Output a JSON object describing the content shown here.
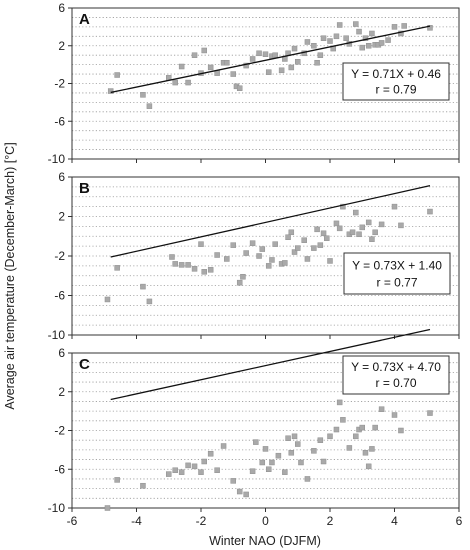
{
  "figure": {
    "ylabel": "Average air temperature (December-March) [°C]",
    "xlabel": "Winter NAO (DJFM)"
  },
  "chart_data": [
    {
      "type": "scatter",
      "panel": "A",
      "xlim": [
        -6,
        6
      ],
      "ylim": [
        -10,
        6
      ],
      "xticks": [
        -6,
        -4,
        -2,
        0,
        2,
        4,
        6
      ],
      "yticks": [
        -10,
        -6,
        -2,
        2,
        6
      ],
      "grid": "dotted horizontal at 1-unit intervals",
      "equation": "Y = 0.71X + 0.46",
      "r": "r = 0.79",
      "annotation_placement": "right-middle",
      "trendline": {
        "slope": 0.71,
        "intercept": 0.46,
        "x_range": [
          -4.8,
          5.1
        ]
      },
      "points": [
        [
          -4.8,
          -2.8
        ],
        [
          -4.6,
          -1.1
        ],
        [
          -3.8,
          -3.2
        ],
        [
          -3.6,
          -4.4
        ],
        [
          -3.0,
          -1.4
        ],
        [
          -2.8,
          -1.9
        ],
        [
          -2.6,
          -0.2
        ],
        [
          -2.4,
          -1.9
        ],
        [
          -2.2,
          1.0
        ],
        [
          -2.0,
          -0.9
        ],
        [
          -1.9,
          1.5
        ],
        [
          -1.7,
          -0.3
        ],
        [
          -1.5,
          -0.9
        ],
        [
          -1.3,
          0.2
        ],
        [
          -1.2,
          0.2
        ],
        [
          -1.0,
          -1.0
        ],
        [
          -0.9,
          -2.3
        ],
        [
          -0.8,
          -2.5
        ],
        [
          -0.6,
          -0.1
        ],
        [
          -0.4,
          0.6
        ],
        [
          -0.2,
          1.2
        ],
        [
          0.0,
          1.1
        ],
        [
          0.1,
          -0.8
        ],
        [
          0.2,
          0.9
        ],
        [
          0.3,
          1.0
        ],
        [
          0.5,
          -0.6
        ],
        [
          0.6,
          0.6
        ],
        [
          0.7,
          1.2
        ],
        [
          0.8,
          -0.3
        ],
        [
          0.9,
          1.7
        ],
        [
          1.0,
          0.3
        ],
        [
          1.2,
          1.2
        ],
        [
          1.3,
          2.4
        ],
        [
          1.5,
          2.0
        ],
        [
          1.6,
          0.2
        ],
        [
          1.7,
          1.0
        ],
        [
          1.8,
          2.8
        ],
        [
          2.0,
          2.5
        ],
        [
          2.1,
          1.7
        ],
        [
          2.2,
          3.0
        ],
        [
          2.3,
          4.2
        ],
        [
          2.5,
          2.8
        ],
        [
          2.6,
          2.2
        ],
        [
          2.8,
          4.3
        ],
        [
          2.9,
          3.5
        ],
        [
          3.0,
          1.8
        ],
        [
          3.1,
          2.8
        ],
        [
          3.2,
          2.0
        ],
        [
          3.3,
          3.3
        ],
        [
          3.4,
          2.1
        ],
        [
          3.5,
          2.1
        ],
        [
          3.6,
          2.3
        ],
        [
          3.8,
          2.6
        ],
        [
          4.0,
          4.0
        ],
        [
          4.2,
          3.3
        ],
        [
          4.3,
          4.1
        ],
        [
          5.1,
          3.9
        ]
      ]
    },
    {
      "type": "scatter",
      "panel": "B",
      "xlim": [
        -6,
        6
      ],
      "ylim": [
        -10,
        6
      ],
      "xticks": [
        -6,
        -4,
        -2,
        0,
        2,
        4,
        6
      ],
      "yticks": [
        -10,
        -6,
        -2,
        2,
        6
      ],
      "grid": "dotted horizontal at 1-unit intervals",
      "equation": "Y = 0.73X + 1.40",
      "r": "r = 0.77",
      "annotation_placement": "right-middle",
      "trendline": {
        "slope": 0.73,
        "intercept": 1.4,
        "x_range": [
          -4.8,
          5.1
        ]
      },
      "points": [
        [
          -4.9,
          -6.4
        ],
        [
          -4.6,
          -3.2
        ],
        [
          -3.8,
          -5.1
        ],
        [
          -3.6,
          -6.6
        ],
        [
          -2.9,
          -2.1
        ],
        [
          -2.8,
          -2.8
        ],
        [
          -2.6,
          -2.9
        ],
        [
          -2.4,
          -2.9
        ],
        [
          -2.2,
          -3.3
        ],
        [
          -2.0,
          -0.8
        ],
        [
          -1.9,
          -3.6
        ],
        [
          -1.7,
          -3.4
        ],
        [
          -1.5,
          -1.9
        ],
        [
          -1.2,
          -2.3
        ],
        [
          -1.0,
          -0.9
        ],
        [
          -0.8,
          -4.7
        ],
        [
          -0.7,
          -4.1
        ],
        [
          -0.6,
          -1.7
        ],
        [
          -0.4,
          -0.7
        ],
        [
          -0.2,
          -2.0
        ],
        [
          -0.1,
          -1.3
        ],
        [
          0.1,
          -3.0
        ],
        [
          0.2,
          -2.4
        ],
        [
          0.3,
          -0.8
        ],
        [
          0.5,
          -2.8
        ],
        [
          0.6,
          -2.7
        ],
        [
          0.7,
          -0.1
        ],
        [
          0.8,
          0.4
        ],
        [
          0.9,
          -1.6
        ],
        [
          1.0,
          -1.2
        ],
        [
          1.2,
          -0.4
        ],
        [
          1.3,
          -2.3
        ],
        [
          1.5,
          -1.2
        ],
        [
          1.6,
          0.7
        ],
        [
          1.7,
          -0.9
        ],
        [
          1.8,
          0.3
        ],
        [
          1.9,
          -0.2
        ],
        [
          2.0,
          -2.5
        ],
        [
          2.2,
          1.3
        ],
        [
          2.3,
          0.8
        ],
        [
          2.4,
          3.0
        ],
        [
          2.6,
          0.2
        ],
        [
          2.7,
          0.4
        ],
        [
          2.8,
          2.4
        ],
        [
          2.9,
          0.2
        ],
        [
          3.0,
          0.9
        ],
        [
          3.2,
          1.4
        ],
        [
          3.3,
          -0.3
        ],
        [
          3.4,
          0.4
        ],
        [
          3.6,
          1.2
        ],
        [
          4.0,
          3.0
        ],
        [
          4.2,
          1.1
        ],
        [
          5.1,
          2.5
        ]
      ]
    },
    {
      "type": "scatter",
      "panel": "C",
      "xlim": [
        -6,
        6
      ],
      "ylim": [
        -10,
        6
      ],
      "xticks": [
        -6,
        -4,
        -2,
        0,
        2,
        4,
        6
      ],
      "yticks": [
        -10,
        -6,
        -2,
        2,
        6
      ],
      "grid": "dotted horizontal at 1-unit intervals",
      "equation": "Y = 0.73X + 4.70",
      "r": "r = 0.70",
      "annotation_placement": "top-right",
      "trendline": {
        "slope": 0.73,
        "intercept": 4.7,
        "x_range": [
          -4.8,
          5.1
        ]
      },
      "points": [
        [
          -4.9,
          -10.0
        ],
        [
          -4.6,
          -7.1
        ],
        [
          -3.8,
          -7.7
        ],
        [
          -3.0,
          -6.5
        ],
        [
          -2.8,
          -6.1
        ],
        [
          -2.6,
          -6.3
        ],
        [
          -2.4,
          -5.6
        ],
        [
          -2.2,
          -5.7
        ],
        [
          -2.0,
          -6.3
        ],
        [
          -1.9,
          -5.2
        ],
        [
          -1.7,
          -4.4
        ],
        [
          -1.5,
          -6.1
        ],
        [
          -1.3,
          -3.6
        ],
        [
          -1.0,
          -7.2
        ],
        [
          -0.8,
          -8.3
        ],
        [
          -0.6,
          -8.6
        ],
        [
          -0.4,
          -6.2
        ],
        [
          -0.3,
          -3.2
        ],
        [
          -0.1,
          -5.3
        ],
        [
          0.0,
          -3.9
        ],
        [
          0.1,
          -6.0
        ],
        [
          0.2,
          -5.3
        ],
        [
          0.4,
          -4.6
        ],
        [
          0.6,
          -6.3
        ],
        [
          0.7,
          -2.8
        ],
        [
          0.8,
          -4.3
        ],
        [
          0.9,
          -2.6
        ],
        [
          1.0,
          -3.4
        ],
        [
          1.1,
          -5.3
        ],
        [
          1.3,
          -7.0
        ],
        [
          1.5,
          -4.1
        ],
        [
          1.7,
          -3.0
        ],
        [
          1.8,
          -5.2
        ],
        [
          2.0,
          -2.6
        ],
        [
          2.2,
          -1.9
        ],
        [
          2.3,
          0.9
        ],
        [
          2.4,
          -0.9
        ],
        [
          2.6,
          -3.8
        ],
        [
          2.8,
          -2.6
        ],
        [
          2.9,
          -1.9
        ],
        [
          3.0,
          -1.7
        ],
        [
          3.1,
          -4.3
        ],
        [
          3.2,
          -5.7
        ],
        [
          3.3,
          -3.9
        ],
        [
          3.4,
          -1.7
        ],
        [
          3.6,
          0.2
        ],
        [
          4.0,
          -0.4
        ],
        [
          4.2,
          -2.0
        ],
        [
          5.1,
          -0.2
        ]
      ]
    }
  ]
}
